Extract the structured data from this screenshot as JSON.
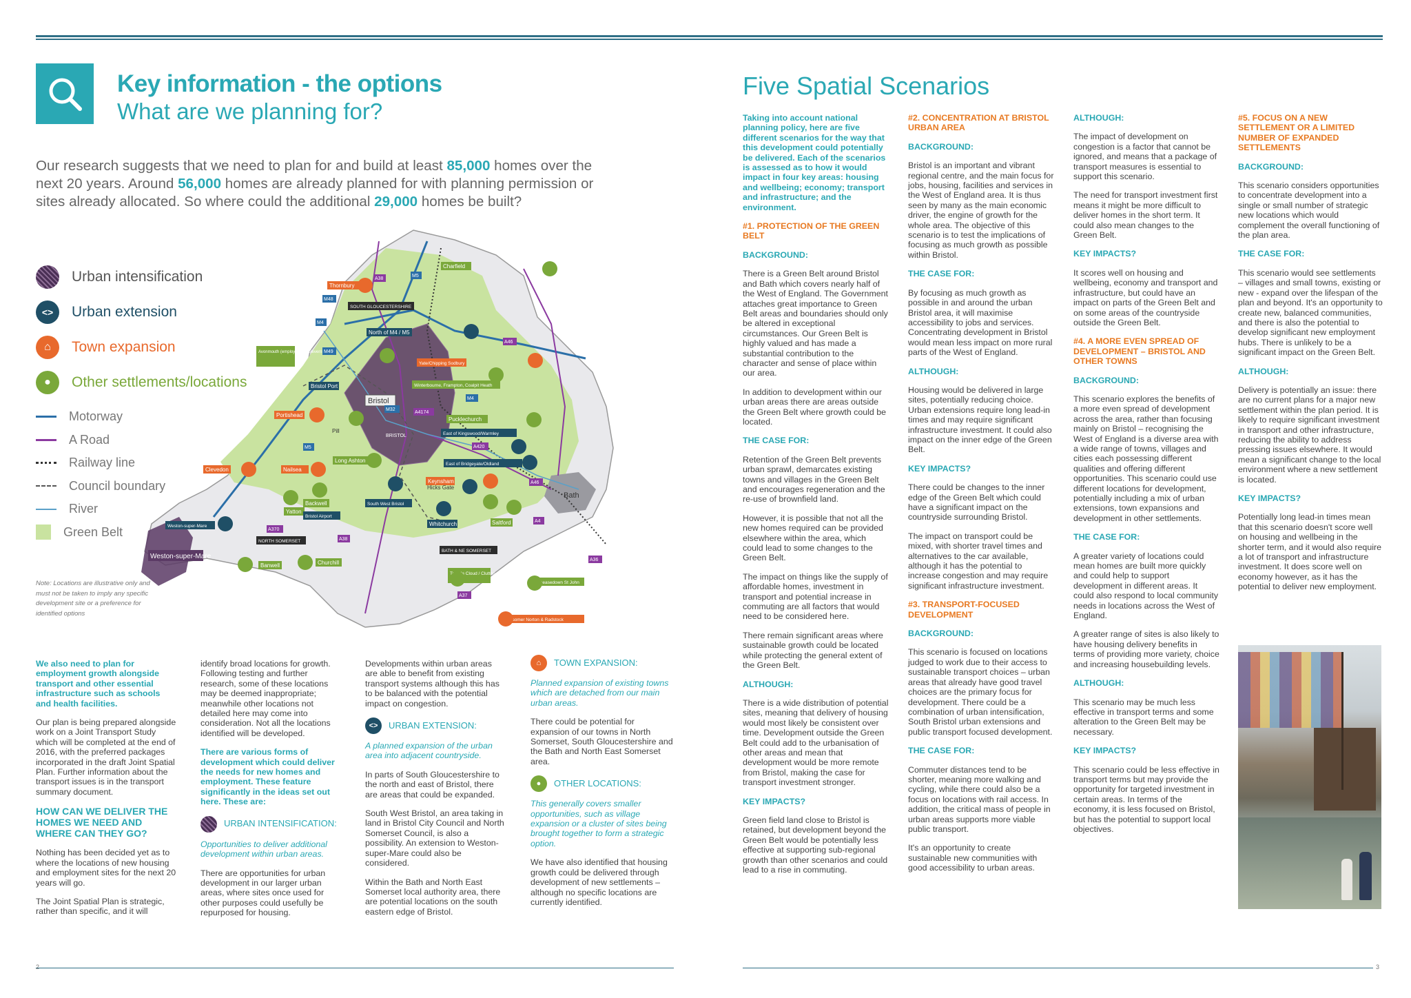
{
  "header": {
    "title": "Key information - the options",
    "subtitle": "What are we planning for?",
    "right_title": "Five Spatial Scenarios"
  },
  "intro": {
    "part1": "Our research suggests that we need to plan for and build at least ",
    "num1": "85,000",
    "part2": " homes over the next 20 years. Around ",
    "num2": "56,000",
    "part3": " homes are already planned for with planning permission or sites already allocated. So where could the additional ",
    "num3": "29,000",
    "part4": " homes be built?"
  },
  "legend": {
    "items": [
      {
        "label": "Urban intensification",
        "color": "#4a2f55"
      },
      {
        "label": "Urban extension",
        "color": "#1f4f66"
      },
      {
        "label": "Town expansion",
        "color": "#e8692c"
      },
      {
        "label": "Other settlements/locations",
        "color": "#7aa83a"
      }
    ],
    "lines": [
      {
        "label": "Motorway",
        "color": "#2b6fa8"
      },
      {
        "label": "A Road",
        "color": "#8b3aa0"
      },
      {
        "label": "Railway line",
        "color": "#333333"
      },
      {
        "label": "Council boundary",
        "color": "#555555"
      },
      {
        "label": "River",
        "color": "#5aa0c8"
      },
      {
        "label": "Green Belt",
        "color": "#c9e3a0"
      }
    ]
  },
  "map": {
    "note": "Note: Locations are illustrative only and must not be taken to imply any specific development site or a preference for identified options",
    "places": [
      {
        "label": "Charfield"
      },
      {
        "label": "Thornbury"
      },
      {
        "label": "SOUTH GLOUCESTERSHIRE"
      },
      {
        "label": "North of M4 / M5"
      },
      {
        "label": "Avonmouth (employment) / Severnside"
      },
      {
        "label": "Yate/Chipping Sodbury"
      },
      {
        "label": "Winterbourne, Frampton, Coalpit Heath"
      },
      {
        "label": "Bristol Port"
      },
      {
        "label": "Bristol"
      },
      {
        "label": "Portishead"
      },
      {
        "label": "Pill"
      },
      {
        "label": "Pucklechurch"
      },
      {
        "label": "East of Kingswood/Warmley"
      },
      {
        "label": "BRISTOL"
      },
      {
        "label": "Clevedon"
      },
      {
        "label": "Nailsea"
      },
      {
        "label": "Long Ashton"
      },
      {
        "label": "East of Bridgeyate/Oldland"
      },
      {
        "label": "Keynsham"
      },
      {
        "label": "Backwell"
      },
      {
        "label": "Yatton"
      },
      {
        "label": "Bristol Airport"
      },
      {
        "label": "South West Bristol"
      },
      {
        "label": "Hicks Gate"
      },
      {
        "label": "Whitchurch"
      },
      {
        "label": "Saltford"
      },
      {
        "label": "Weston-super-Mare"
      },
      {
        "label": "NORTH SOMERSET"
      },
      {
        "label": "BATH & NE SOMERSET"
      },
      {
        "label": "Bath"
      },
      {
        "label": "Banwell"
      },
      {
        "label": "Churchill"
      },
      {
        "label": "Temple Cloud / Clutton"
      },
      {
        "label": "Peasedown St John"
      },
      {
        "label": "Midsomer Norton & Radstock"
      }
    ],
    "roads": [
      {
        "label": "M5"
      },
      {
        "label": "A38"
      },
      {
        "label": "M48"
      },
      {
        "label": "M4"
      },
      {
        "label": "M49"
      },
      {
        "label": "A46"
      },
      {
        "label": "M32"
      },
      {
        "label": "A4174"
      },
      {
        "label": "A420"
      },
      {
        "label": "A370"
      },
      {
        "label": "A4"
      },
      {
        "label": "A36"
      },
      {
        "label": "A37"
      }
    ]
  },
  "left_columns": {
    "col1": {
      "lead": "We also need to plan for employment growth alongside transport and other essential infrastructure such as schools and health facilities.",
      "p1": "Our plan is being prepared alongside work on a Joint Transport Study which will be completed at the end of 2016, with the preferred packages incorporated in the draft Joint Spatial Plan. Further information about the transport issues is in the transport summary document.",
      "heading": "HOW CAN WE DELIVER THE HOMES WE NEED AND WHERE CAN THEY GO?",
      "p2": "Nothing has been decided yet as to where the locations of new housing and employment sites for the next 20 years will go.",
      "p3": "The Joint Spatial Plan is strategic, rather than specific, and it will"
    },
    "col2": {
      "p1": "identify broad locations for growth. Following testing and further research, some of these locations may be deemed inappropriate; meanwhile other locations not detailed here may come into consideration. Not all the locations identified will be developed.",
      "lead": "There are various forms of development which could deliver the needs for new homes and employment. These feature significantly in the ideas set out here. These are:",
      "urban_int_title": "URBAN INTENSIFICATION:",
      "urban_int_def": "Opportunities to deliver additional development within urban areas.",
      "p2": "There are opportunities for urban development in our larger urban areas, where sites once used for other purposes could usefully be repurposed for housing."
    },
    "col3": {
      "p1": "Developments within urban areas are able to benefit from existing transport systems although this has to be balanced with the potential impact on congestion.",
      "urban_ext_title": "URBAN EXTENSION:",
      "urban_ext_def": "A planned expansion of the urban area into adjacent countryside.",
      "p2": "In parts of South Gloucestershire to the north and east of Bristol, there are areas that could be expanded.",
      "p3": "South West Bristol, an area taking in land in Bristol City Council and North Somerset Council, is also a possibility. An extension to Weston-super-Mare could also be considered.",
      "p4": "Within the Bath and North East Somerset local authority area, there are potential locations on the south eastern edge of Bristol."
    },
    "col4": {
      "town_title": "TOWN EXPANSION:",
      "town_def": "Planned expansion of existing towns which are detached from our main urban areas.",
      "p1": "There could be potential for expansion of our towns in North Somerset, South Gloucestershire and the Bath and North East Somerset area.",
      "other_title": "OTHER LOCATIONS:",
      "other_def": "This generally covers smaller opportunities, such as village expansion or a cluster of sites being brought together to form a strategic option.",
      "p2": "We have also identified that housing growth could be delivered through development of new settlements – although no specific locations are currently identified."
    }
  },
  "right_columns": {
    "col1": {
      "lead": "Taking into account national planning policy, here are five different scenarios for the way that this development could potentially be delivered. Each of the scenarios is assessed as to how it would impact in four key areas: housing and wellbeing; economy; transport and infrastructure; and the environment.",
      "s1_title": "#1. PROTECTION OF THE GREEN BELT",
      "bg_label": "BACKGROUND:",
      "bg1": "There is a Green Belt around Bristol and Bath which covers nearly half of the West of England. The Government attaches great importance to Green Belt areas and boundaries should only be altered in exceptional circumstances. Our Green Belt is highly valued and has made a substantial contribution to the character and sense of place within our area.",
      "bg2": "In addition to development within our urban areas there are areas outside the Green Belt where growth could be located.",
      "case_label": "THE CASE FOR:",
      "case1": "Retention of the Green Belt prevents urban sprawl, demarcates existing towns and villages in the Green Belt and encourages regeneration and the re-use of brownfield land.",
      "case2": "However, it is possible that not all the new homes required can be provided elsewhere within the area, which could lead to some changes to the Green Belt.",
      "case3": "The impact on things like the supply of affordable homes, investment in transport and potential increase in commuting are all factors that would need to be considered here.",
      "case4": "There remain significant areas where sustainable growth could be located while protecting the general extent of the Green Belt.",
      "although_label": "ALTHOUGH:",
      "although1": "There is a wide distribution of potential sites, meaning that delivery of housing would most likely be consistent over time. Development outside the Green Belt could add to the urbanisation of other areas and mean that development would be more remote from Bristol, making the case for transport investment stronger.",
      "impacts_label": "KEY IMPACTS?",
      "impacts1": "Green field land close to Bristol is retained, but development beyond the Green Belt would be potentially less effective at supporting sub-regional growth than other scenarios and could lead to a rise in commuting."
    },
    "col2": {
      "s2_title": "#2. CONCENTRATION AT BRISTOL URBAN AREA",
      "bg_label": "BACKGROUND:",
      "bg1": "Bristol is an important and vibrant regional centre, and the main focus for jobs, housing, facilities and services in the West of England area. It is thus seen by many as the main economic driver, the engine of growth for the whole area. The objective of this scenario is to test the implications of focusing as much growth as possible within Bristol.",
      "case_label": "THE CASE FOR:",
      "case1": "By focusing as much growth as possible in and around the urban Bristol area, it will maximise accessibility to jobs and services. Concentrating development in Bristol would mean less impact on more rural parts of the West of England.",
      "although_label": "ALTHOUGH:",
      "although1": "Housing would be delivered in large sites, potentially reducing choice. Urban extensions require long lead-in times and may require significant infrastructure investment. It could also impact on the inner edge of the Green Belt.",
      "impacts_label": "KEY IMPACTS?",
      "impacts1": "There could be changes to the inner edge of the Green Belt which could have a significant impact on the countryside surrounding Bristol.",
      "impacts2": "The impact on transport could be mixed, with shorter travel times and alternatives to the car available, although it has the potential to increase congestion and may require significant infrastructure investment.",
      "s3_title": "#3. TRANSPORT-FOCUSED DEVELOPMENT",
      "bg2_label": "BACKGROUND:",
      "bg2": "This scenario is focused on locations judged to work due to their access to sustainable transport choices – urban areas that already have good travel choices are the primary focus for development. There could be a combination of urban intensification, South Bristol urban extensions and public transport focused development.",
      "case2_label": "THE CASE FOR:",
      "case2": "Commuter distances tend to be shorter, meaning more walking and cycling, while there could also be a focus on locations with rail access. In addition, the critical mass of people in urban areas supports more viable public transport.",
      "case3": "It's an opportunity to create sustainable new communities with good accessibility to urban areas."
    },
    "col3": {
      "although_label": "ALTHOUGH:",
      "although1": "The impact of development on congestion is a factor that cannot be ignored, and means that a package of transport measures is essential to support this scenario.",
      "although2": "The need for transport investment first means it might be more difficult to deliver homes in the short term. It could also mean changes to the Green Belt.",
      "impacts_label": "KEY IMPACTS?",
      "impacts1": "It scores well on housing and wellbeing, economy and transport and infrastructure, but could have an impact on parts of the Green Belt and on some areas of the countryside outside the Green Belt.",
      "s4_title": "#4. A MORE EVEN SPREAD OF DEVELOPMENT – BRISTOL AND OTHER TOWNS",
      "bg_label": "BACKGROUND:",
      "bg1": "This scenario explores the benefits of a more even spread of development across the area, rather than focusing mainly on Bristol – recognising the West of England is a diverse area with a wide range of towns, villages and cities each possessing different qualities and offering different opportunities. This scenario could use different locations for development, potentially including a mix of urban extensions, town expansions and development in other settlements.",
      "case_label": "THE CASE FOR:",
      "case1": "A greater variety of locations could mean homes are built more quickly and could help to support development in different areas. It could also respond to local community needs in locations across the West of England.",
      "case2": "A greater range of sites is also likely to have housing delivery benefits in terms of providing more variety, choice and increasing housebuilding levels.",
      "although2_label": "ALTHOUGH:",
      "although3": "This scenario may be much less effective in transport terms and some alteration to the Green Belt may be necessary.",
      "impacts2_label": "KEY IMPACTS?",
      "impacts2": "This scenario could be less effective in transport terms but may provide the opportunity for targeted investment in certain areas. In terms of the economy, it is less focused on Bristol, but has the potential to support local objectives."
    },
    "col4": {
      "s5_title": "#5. FOCUS ON A NEW SETTLEMENT OR A LIMITED NUMBER OF EXPANDED SETTLEMENTS",
      "bg_label": "BACKGROUND:",
      "bg1": "This scenario considers opportunities to concentrate development into a single or small number of strategic new locations which would complement the overall functioning of the plan area.",
      "case_label": "THE CASE FOR:",
      "case1": "This scenario would see settlements – villages and small towns, existing or new - expand over the lifespan of the plan and beyond. It's an opportunity to create new, balanced communities, and there is also the potential to develop significant new employment hubs. There is unlikely to be a significant impact on the Green Belt.",
      "although_label": "ALTHOUGH:",
      "although1": "Delivery is potentially an issue: there are no current plans for a major new settlement within the plan period. It is likely to require significant investment in transport and other infrastructure, reducing the ability to address pressing issues elsewhere. It would mean a significant change to the local environment where a new settlement is located.",
      "impacts_label": "KEY IMPACTS?",
      "impacts1": "Potentially long lead-in times mean that this scenario doesn't score well on housing and wellbeing in the shorter term, and it would also require a lot of transport and infrastructure investment. It does score well on economy however, as it has the potential to deliver new employment."
    }
  },
  "page_numbers": {
    "left": "2",
    "right": "3"
  },
  "colors": {
    "teal": "#2aa8b4",
    "orange": "#e87a22",
    "navy": "#2f6f86",
    "green_belt": "#c9e3a0"
  }
}
